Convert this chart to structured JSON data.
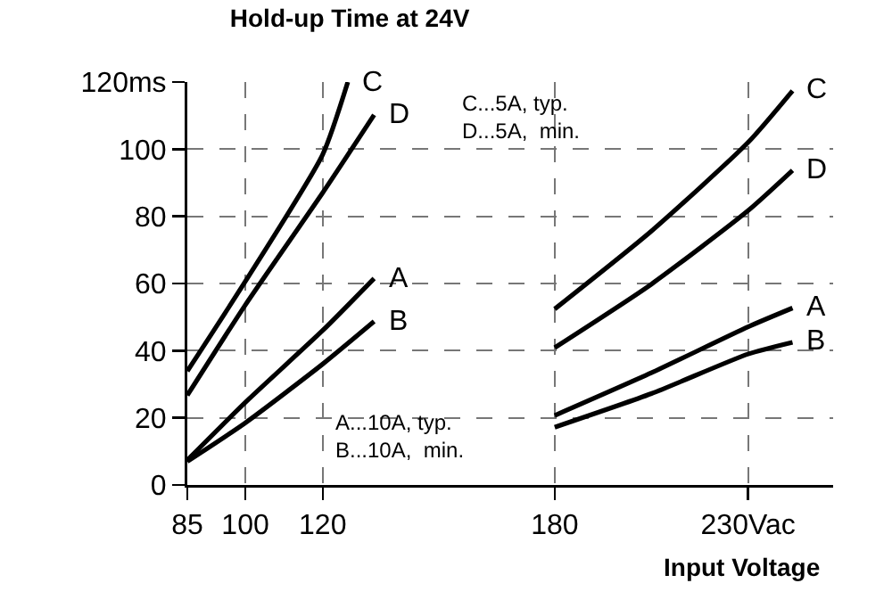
{
  "chart_data": {
    "type": "line",
    "title": "Hold-up Time at 24V",
    "xlabel": "Input Voltage",
    "series": [
      {
        "name": "C",
        "color": "#000000",
        "x": [
          85,
          100,
          120,
          126.5,
          null,
          180,
          205,
          230,
          241.5
        ],
        "values": [
          33.9,
          60.6,
          98.4,
          120,
          null,
          52.4,
          75.6,
          102,
          117.4
        ]
      },
      {
        "name": "D",
        "color": "#000000",
        "x": [
          85,
          100,
          120,
          133.3,
          null,
          180,
          205,
          230,
          241.5
        ],
        "values": [
          26.7,
          53.6,
          87,
          110.2,
          null,
          40.9,
          59.8,
          81.7,
          93.7
        ]
      },
      {
        "name": "A",
        "color": "#000000",
        "x": [
          85,
          100,
          120,
          133.3,
          null,
          180,
          205,
          230,
          241.5
        ],
        "values": [
          7.4,
          24.6,
          46,
          61.5,
          null,
          20.7,
          33.4,
          47.1,
          52.7
        ]
      },
      {
        "name": "B",
        "color": "#000000",
        "x": [
          85,
          100,
          120,
          133.3,
          null,
          180,
          205,
          230,
          241.5
        ],
        "values": [
          7,
          18.5,
          36,
          48.7,
          null,
          17.2,
          27.2,
          39,
          42.5
        ]
      }
    ],
    "xlim": [
      85,
      252
    ],
    "xticks": [
      85,
      100,
      120,
      180,
      {
        "value": 230,
        "label": "230Vac"
      }
    ],
    "ylim": [
      0,
      120
    ],
    "yticks": [
      0,
      20,
      40,
      60,
      80,
      100,
      {
        "value": 120,
        "label": "120ms"
      }
    ],
    "grid": true,
    "legend": false,
    "marker": "none",
    "line_style": "solid",
    "annotations": [
      "C...5A, typ.\nD...5A,  min.",
      "A...10A, typ.\nB...10A,  min."
    ]
  }
}
